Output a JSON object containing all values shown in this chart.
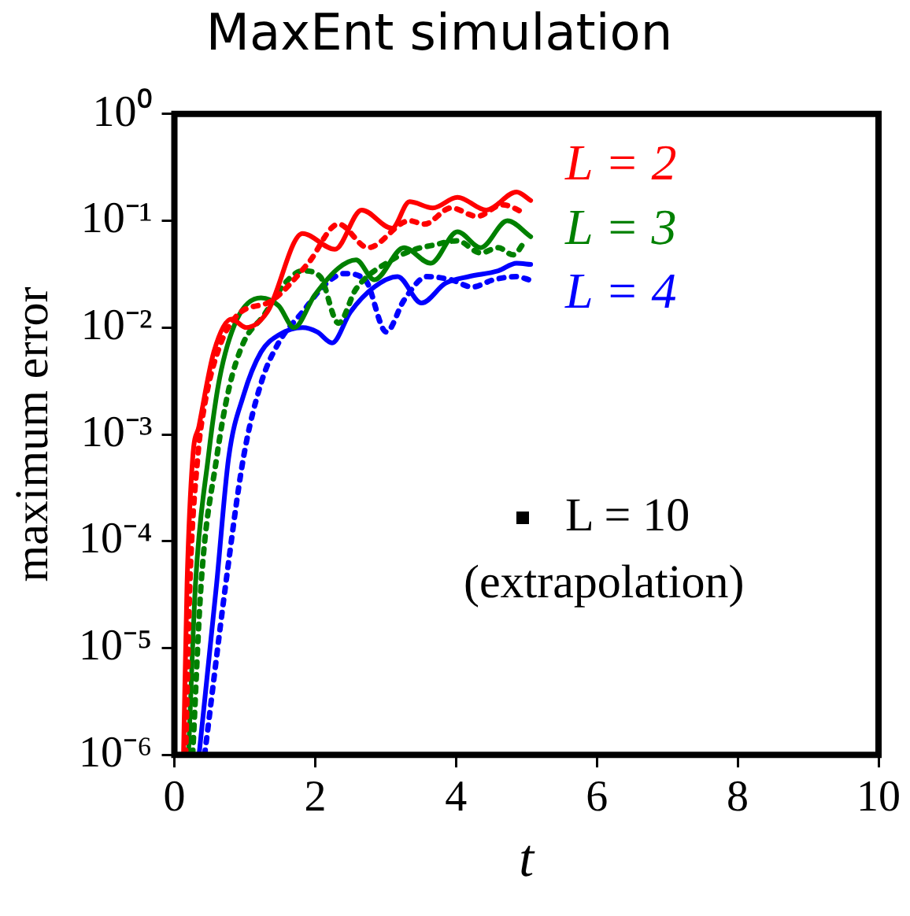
{
  "chart_data": {
    "type": "line",
    "title": "MaxEnt simulation",
    "xlabel": "t",
    "ylabel": "maximum error",
    "log": "y",
    "xlim": [
      0,
      10
    ],
    "xticks": [
      0,
      2,
      4,
      6,
      8,
      10
    ],
    "ylim": [
      1e-06,
      1
    ],
    "yticks": [
      {
        "value": 1e-06,
        "label": "10⁻⁶"
      },
      {
        "value": 1e-05,
        "label": "10⁻⁵"
      },
      {
        "value": 0.0001,
        "label": "10⁻⁴"
      },
      {
        "value": 0.001,
        "label": "10⁻³"
      },
      {
        "value": 0.01,
        "label": "10⁻²"
      },
      {
        "value": 0.1,
        "label": "10⁻¹"
      },
      {
        "value": 1,
        "label": "10⁰"
      }
    ],
    "grid": false,
    "legend": false,
    "marker": "none",
    "annotations": [
      "L = 10",
      "(extrapolation)"
    ],
    "series": [
      {
        "name": "L = 2",
        "color": "#ff0000",
        "line_style": "solid",
        "x": [
          0.13,
          0.18,
          0.26,
          0.35,
          0.56,
          0.81,
          1.02,
          1.32,
          1.82,
          2.28,
          2.66,
          3.09,
          3.34,
          3.67,
          4.02,
          4.43,
          4.86,
          5.06
        ],
        "values": [
          1e-06,
          4e-05,
          0.0006,
          0.0012,
          0.0059,
          0.012,
          0.01,
          0.014,
          0.076,
          0.054,
          0.126,
          0.085,
          0.151,
          0.132,
          0.166,
          0.126,
          0.186,
          0.155
        ]
      },
      {
        "color": "#ff0000",
        "line_style": "dotted",
        "x": [
          0.16,
          0.22,
          0.33,
          0.43,
          0.64,
          0.89,
          1.39,
          1.9,
          2.33,
          2.75,
          3.34,
          3.55,
          3.93,
          4.3,
          4.66,
          4.99
        ],
        "values": [
          1e-06,
          4e-05,
          0.0006,
          0.0019,
          0.0066,
          0.013,
          0.018,
          0.04,
          0.093,
          0.056,
          0.1,
          0.093,
          0.132,
          0.11,
          0.141,
          0.117
        ]
      },
      {
        "name": "L = 3",
        "color": "#008000",
        "line_style": "solid",
        "x": [
          0.2,
          0.3,
          0.48,
          0.64,
          0.89,
          1.23,
          1.48,
          1.7,
          1.99,
          2.33,
          2.58,
          2.84,
          3.26,
          3.64,
          4.02,
          4.35,
          4.73,
          5.06
        ],
        "values": [
          1e-06,
          4e-05,
          0.0006,
          0.0033,
          0.012,
          0.019,
          0.016,
          0.01,
          0.02,
          0.036,
          0.043,
          0.028,
          0.056,
          0.04,
          0.079,
          0.056,
          0.1,
          0.071
        ]
      },
      {
        "color": "#008000",
        "line_style": "dotted",
        "x": [
          0.26,
          0.38,
          0.6,
          0.77,
          0.98,
          1.27,
          1.57,
          1.82,
          2.07,
          2.33,
          2.58,
          3.09,
          3.42,
          3.67,
          4.02,
          4.35,
          4.6,
          4.81,
          4.99
        ],
        "values": [
          1e-06,
          4e-05,
          0.0006,
          0.0026,
          0.0072,
          0.013,
          0.026,
          0.034,
          0.03,
          0.011,
          0.023,
          0.043,
          0.054,
          0.059,
          0.065,
          0.05,
          0.056,
          0.048,
          0.066
        ]
      },
      {
        "name": "L = 4",
        "color": "#0000ff",
        "line_style": "solid",
        "x": [
          0.35,
          0.6,
          0.77,
          0.98,
          1.23,
          1.48,
          1.82,
          2.03,
          2.24,
          2.5,
          2.84,
          3.17,
          3.51,
          3.85,
          4.18,
          4.6,
          4.86,
          5.06
        ],
        "values": [
          1e-06,
          4e-05,
          0.0006,
          0.0023,
          0.0059,
          0.0085,
          0.01,
          0.0091,
          0.0072,
          0.014,
          0.024,
          0.03,
          0.017,
          0.026,
          0.03,
          0.034,
          0.04,
          0.039
        ]
      },
      {
        "color": "#0000ff",
        "line_style": "dotted",
        "x": [
          0.43,
          0.73,
          0.98,
          1.23,
          1.48,
          1.82,
          2.16,
          2.41,
          2.71,
          3.01,
          3.26,
          3.59,
          3.93,
          4.23,
          4.53,
          4.86,
          5.04
        ],
        "values": [
          1e-06,
          4e-05,
          0.0006,
          0.003,
          0.0072,
          0.014,
          0.026,
          0.032,
          0.028,
          0.0091,
          0.018,
          0.03,
          0.028,
          0.024,
          0.028,
          0.03,
          0.028
        ]
      }
    ]
  }
}
